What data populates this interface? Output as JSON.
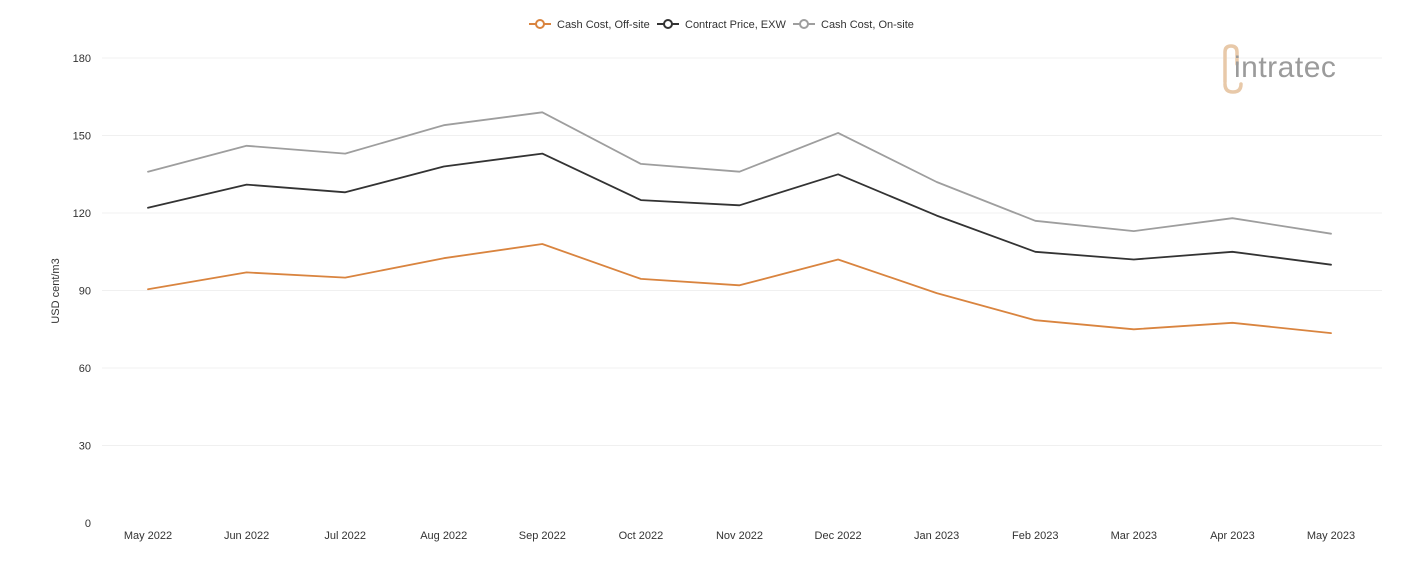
{
  "logo": {
    "text": "intratec",
    "accent_color": "#e8c9a9",
    "text_color": "#9b9b9b"
  },
  "chart_data": {
    "type": "line",
    "title": "",
    "xlabel": "",
    "ylabel": "USD cent/m3",
    "ylim": [
      0,
      180
    ],
    "yticks": [
      0,
      30,
      60,
      90,
      120,
      150,
      180
    ],
    "grid": true,
    "legend_position": "top-center",
    "categories": [
      "May 2022",
      "Jun 2022",
      "Jul 2022",
      "Aug 2022",
      "Sep 2022",
      "Oct 2022",
      "Nov 2022",
      "Dec 2022",
      "Jan 2023",
      "Feb 2023",
      "Mar 2023",
      "Apr 2023",
      "May 2023"
    ],
    "series": [
      {
        "name": "Cash Cost, Off-site",
        "color": "#d9843f",
        "values": [
          90.5,
          97,
          95,
          102.5,
          108,
          94.5,
          92,
          102,
          89,
          78.5,
          75,
          77.5,
          73.5
        ]
      },
      {
        "name": "Contract Price, EXW",
        "color": "#333333",
        "values": [
          122,
          131,
          128,
          138,
          143,
          125,
          123,
          135,
          119,
          105,
          102,
          105,
          100
        ]
      },
      {
        "name": "Cash Cost, On-site",
        "color": "#9e9e9e",
        "values": [
          136,
          146,
          143,
          154,
          159,
          139,
          136,
          151,
          132,
          117,
          113,
          118,
          112
        ]
      }
    ]
  }
}
